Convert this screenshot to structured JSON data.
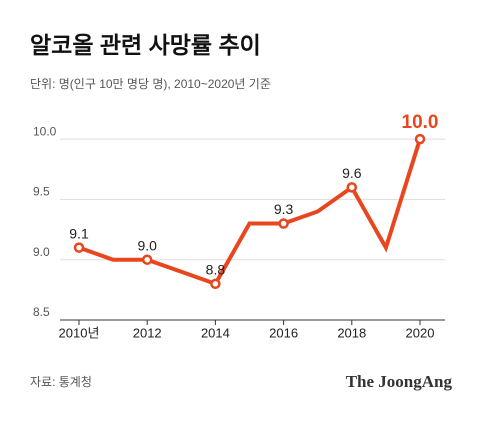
{
  "chart_data": {
    "type": "line",
    "title": "알코올 관련 사망률 추이",
    "subtitle": "단위: 명(인구 10만 명당 명), 2010~2020년 기준",
    "source": "자료: 통계청",
    "brand": "The JoongAng",
    "x": [
      2010,
      2011,
      2012,
      2013,
      2014,
      2015,
      2016,
      2017,
      2018,
      2019,
      2020
    ],
    "series": [
      {
        "name": "사망률",
        "color": "#e8461e",
        "values": [
          9.1,
          9.0,
          9.0,
          8.9,
          8.8,
          9.3,
          9.3,
          9.4,
          9.6,
          9.1,
          10.0
        ],
        "value_labels": [
          "9.1",
          null,
          "9.0",
          null,
          "8.8",
          null,
          "9.3",
          null,
          "9.6",
          null,
          "10.0"
        ]
      }
    ],
    "xlim": [
      2010,
      2020
    ],
    "xticks": [
      {
        "value": 2010,
        "label": "2010년"
      },
      2012,
      2014,
      2016,
      2018,
      2020
    ],
    "ylim": [
      8.5,
      10.2
    ],
    "yticks": [
      8.5,
      {
        "value": 9,
        "label": "9.0"
      },
      9.5,
      {
        "value": 10,
        "label": "10.0"
      }
    ],
    "grid": true
  }
}
